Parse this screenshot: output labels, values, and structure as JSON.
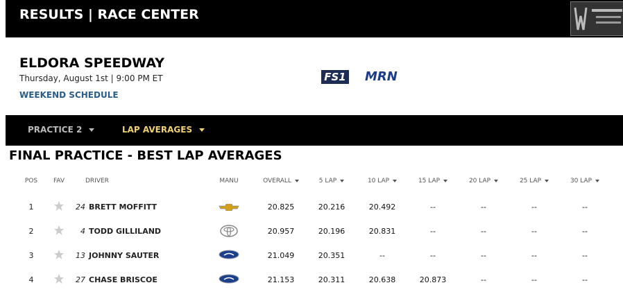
{
  "header": {
    "title": "RESULTS | RACE CENTER"
  },
  "event": {
    "name": "ELDORA SPEEDWAY",
    "date": "Thursday, August 1st | 9:00 PM ET",
    "link": "WEEKEND SCHEDULE",
    "broadcasters": [
      "FS1",
      "MRN"
    ]
  },
  "tabs": [
    "PRACTICE 2",
    "LAP AVERAGES"
  ],
  "table": {
    "title": "FINAL PRACTICE - BEST LAP AVERAGES",
    "columns": [
      "POS",
      "FAV",
      "DRIVER",
      "MANU",
      "OVERALL",
      "5 LAP",
      "10 LAP",
      "15 LAP",
      "20 LAP",
      "25 LAP",
      "30 LAP"
    ],
    "rows": [
      {
        "pos": "1",
        "number": "24",
        "driver": "BRETT MOFFITT",
        "manu": "chevrolet",
        "laps": [
          "20.825",
          "20.216",
          "20.492",
          "--",
          "--",
          "--",
          "--"
        ]
      },
      {
        "pos": "2",
        "number": "4",
        "driver": "TODD GILLILAND",
        "manu": "toyota",
        "laps": [
          "20.957",
          "20.196",
          "20.831",
          "--",
          "--",
          "--",
          "--"
        ]
      },
      {
        "pos": "3",
        "number": "13",
        "driver": "JOHNNY SAUTER",
        "manu": "ford",
        "laps": [
          "21.049",
          "20.351",
          "--",
          "--",
          "--",
          "--",
          "--"
        ]
      },
      {
        "pos": "4",
        "number": "27",
        "driver": "CHASE BRISCOE",
        "manu": "ford",
        "laps": [
          "21.153",
          "20.311",
          "20.638",
          "20.873",
          "--",
          "--",
          "--"
        ]
      }
    ]
  }
}
